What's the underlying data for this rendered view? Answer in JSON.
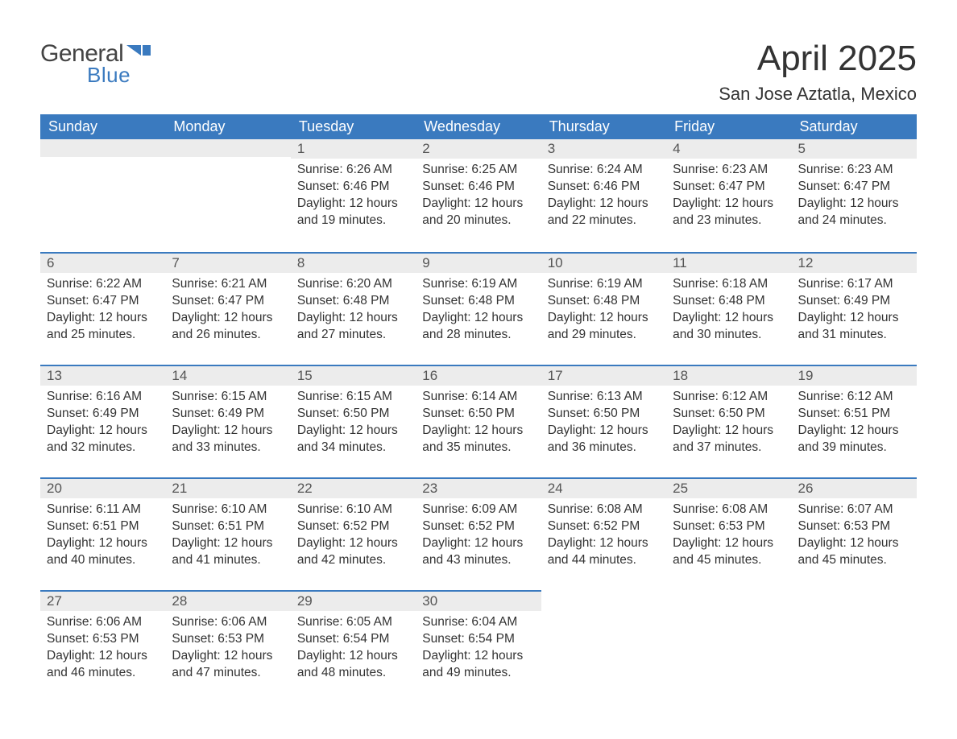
{
  "logo": {
    "text_general": "General",
    "text_blue": "Blue",
    "flag_color": "#3a7abf"
  },
  "title": "April 2025",
  "location": "San Jose Aztatla, Mexico",
  "colors": {
    "header_bg": "#3a7abf",
    "header_text": "#ffffff",
    "daynum_bg": "#ececec",
    "daynum_border": "#3a7abf",
    "body_text": "#333333",
    "page_bg": "#ffffff"
  },
  "fonts": {
    "family": "Arial, Helvetica, sans-serif",
    "title_size_pt": 33,
    "location_size_pt": 16,
    "dayheader_size_pt": 14,
    "body_size_pt": 12
  },
  "weekdays": [
    "Sunday",
    "Monday",
    "Tuesday",
    "Wednesday",
    "Thursday",
    "Friday",
    "Saturday"
  ],
  "weeks": [
    [
      {
        "day": null
      },
      {
        "day": null
      },
      {
        "day": "1",
        "sunrise": "Sunrise: 6:26 AM",
        "sunset": "Sunset: 6:46 PM",
        "daylight": "Daylight: 12 hours and 19 minutes."
      },
      {
        "day": "2",
        "sunrise": "Sunrise: 6:25 AM",
        "sunset": "Sunset: 6:46 PM",
        "daylight": "Daylight: 12 hours and 20 minutes."
      },
      {
        "day": "3",
        "sunrise": "Sunrise: 6:24 AM",
        "sunset": "Sunset: 6:46 PM",
        "daylight": "Daylight: 12 hours and 22 minutes."
      },
      {
        "day": "4",
        "sunrise": "Sunrise: 6:23 AM",
        "sunset": "Sunset: 6:47 PM",
        "daylight": "Daylight: 12 hours and 23 minutes."
      },
      {
        "day": "5",
        "sunrise": "Sunrise: 6:23 AM",
        "sunset": "Sunset: 6:47 PM",
        "daylight": "Daylight: 12 hours and 24 minutes."
      }
    ],
    [
      {
        "day": "6",
        "sunrise": "Sunrise: 6:22 AM",
        "sunset": "Sunset: 6:47 PM",
        "daylight": "Daylight: 12 hours and 25 minutes."
      },
      {
        "day": "7",
        "sunrise": "Sunrise: 6:21 AM",
        "sunset": "Sunset: 6:47 PM",
        "daylight": "Daylight: 12 hours and 26 minutes."
      },
      {
        "day": "8",
        "sunrise": "Sunrise: 6:20 AM",
        "sunset": "Sunset: 6:48 PM",
        "daylight": "Daylight: 12 hours and 27 minutes."
      },
      {
        "day": "9",
        "sunrise": "Sunrise: 6:19 AM",
        "sunset": "Sunset: 6:48 PM",
        "daylight": "Daylight: 12 hours and 28 minutes."
      },
      {
        "day": "10",
        "sunrise": "Sunrise: 6:19 AM",
        "sunset": "Sunset: 6:48 PM",
        "daylight": "Daylight: 12 hours and 29 minutes."
      },
      {
        "day": "11",
        "sunrise": "Sunrise: 6:18 AM",
        "sunset": "Sunset: 6:48 PM",
        "daylight": "Daylight: 12 hours and 30 minutes."
      },
      {
        "day": "12",
        "sunrise": "Sunrise: 6:17 AM",
        "sunset": "Sunset: 6:49 PM",
        "daylight": "Daylight: 12 hours and 31 minutes."
      }
    ],
    [
      {
        "day": "13",
        "sunrise": "Sunrise: 6:16 AM",
        "sunset": "Sunset: 6:49 PM",
        "daylight": "Daylight: 12 hours and 32 minutes."
      },
      {
        "day": "14",
        "sunrise": "Sunrise: 6:15 AM",
        "sunset": "Sunset: 6:49 PM",
        "daylight": "Daylight: 12 hours and 33 minutes."
      },
      {
        "day": "15",
        "sunrise": "Sunrise: 6:15 AM",
        "sunset": "Sunset: 6:50 PM",
        "daylight": "Daylight: 12 hours and 34 minutes."
      },
      {
        "day": "16",
        "sunrise": "Sunrise: 6:14 AM",
        "sunset": "Sunset: 6:50 PM",
        "daylight": "Daylight: 12 hours and 35 minutes."
      },
      {
        "day": "17",
        "sunrise": "Sunrise: 6:13 AM",
        "sunset": "Sunset: 6:50 PM",
        "daylight": "Daylight: 12 hours and 36 minutes."
      },
      {
        "day": "18",
        "sunrise": "Sunrise: 6:12 AM",
        "sunset": "Sunset: 6:50 PM",
        "daylight": "Daylight: 12 hours and 37 minutes."
      },
      {
        "day": "19",
        "sunrise": "Sunrise: 6:12 AM",
        "sunset": "Sunset: 6:51 PM",
        "daylight": "Daylight: 12 hours and 39 minutes."
      }
    ],
    [
      {
        "day": "20",
        "sunrise": "Sunrise: 6:11 AM",
        "sunset": "Sunset: 6:51 PM",
        "daylight": "Daylight: 12 hours and 40 minutes."
      },
      {
        "day": "21",
        "sunrise": "Sunrise: 6:10 AM",
        "sunset": "Sunset: 6:51 PM",
        "daylight": "Daylight: 12 hours and 41 minutes."
      },
      {
        "day": "22",
        "sunrise": "Sunrise: 6:10 AM",
        "sunset": "Sunset: 6:52 PM",
        "daylight": "Daylight: 12 hours and 42 minutes."
      },
      {
        "day": "23",
        "sunrise": "Sunrise: 6:09 AM",
        "sunset": "Sunset: 6:52 PM",
        "daylight": "Daylight: 12 hours and 43 minutes."
      },
      {
        "day": "24",
        "sunrise": "Sunrise: 6:08 AM",
        "sunset": "Sunset: 6:52 PM",
        "daylight": "Daylight: 12 hours and 44 minutes."
      },
      {
        "day": "25",
        "sunrise": "Sunrise: 6:08 AM",
        "sunset": "Sunset: 6:53 PM",
        "daylight": "Daylight: 12 hours and 45 minutes."
      },
      {
        "day": "26",
        "sunrise": "Sunrise: 6:07 AM",
        "sunset": "Sunset: 6:53 PM",
        "daylight": "Daylight: 12 hours and 45 minutes."
      }
    ],
    [
      {
        "day": "27",
        "sunrise": "Sunrise: 6:06 AM",
        "sunset": "Sunset: 6:53 PM",
        "daylight": "Daylight: 12 hours and 46 minutes."
      },
      {
        "day": "28",
        "sunrise": "Sunrise: 6:06 AM",
        "sunset": "Sunset: 6:53 PM",
        "daylight": "Daylight: 12 hours and 47 minutes."
      },
      {
        "day": "29",
        "sunrise": "Sunrise: 6:05 AM",
        "sunset": "Sunset: 6:54 PM",
        "daylight": "Daylight: 12 hours and 48 minutes."
      },
      {
        "day": "30",
        "sunrise": "Sunrise: 6:04 AM",
        "sunset": "Sunset: 6:54 PM",
        "daylight": "Daylight: 12 hours and 49 minutes."
      },
      {
        "day": null
      },
      {
        "day": null
      },
      {
        "day": null
      }
    ]
  ]
}
